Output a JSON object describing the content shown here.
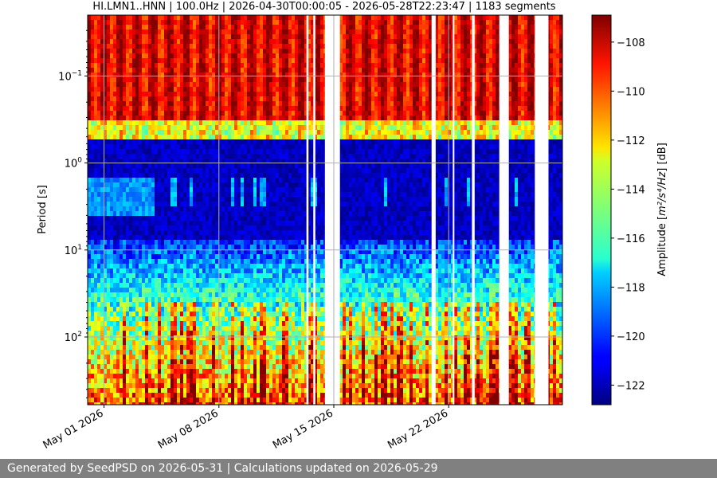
{
  "chart_data": {
    "type": "heatmap",
    "title": "HI.LMN1..HNN | 100.0Hz | 2026-04-30T00:00:05 - 2026-05-28T22:23:47 | 1183 segments",
    "xlabel": "",
    "ylabel": "Period [s]",
    "colorbar_label_prefix": "Amplitude [",
    "colorbar_label_unit": "m²/s⁴/Hz",
    "colorbar_label_suffix": "] [dB]",
    "x_start": "2026-04-30T00:00:05",
    "x_end": "2026-05-28T22:23:47",
    "x_ticks": [
      {
        "date": "2026-05-01",
        "label": "May 01 2026"
      },
      {
        "date": "2026-05-08",
        "label": "May 08 2026"
      },
      {
        "date": "2026-05-15",
        "label": "May 15 2026"
      },
      {
        "date": "2026-05-22",
        "label": "May 22 2026"
      }
    ],
    "y_scale": "log",
    "y_inverted": true,
    "ylim": [
      0.02,
      600
    ],
    "y_ticks": [
      {
        "value": 0.1,
        "base": "10",
        "exp": "−1"
      },
      {
        "value": 1,
        "base": "10",
        "exp": "0"
      },
      {
        "value": 10,
        "base": "10",
        "exp": "1"
      },
      {
        "value": 100,
        "base": "10",
        "exp": "2"
      }
    ],
    "colorbar_range": [
      -122.8,
      -106.9
    ],
    "colorbar_ticks": [
      -108,
      -110,
      -112,
      -114,
      -116,
      -118,
      -120,
      -122
    ],
    "colormap": "jet",
    "grid": true,
    "segments": 1183,
    "data_gaps": [
      [
        "2026-05-13T08:00",
        "2026-05-13T11:00"
      ],
      [
        "2026-05-13T18:00",
        "2026-05-13T21:00"
      ],
      [
        "2026-05-14T11:00",
        "2026-05-15T09:00"
      ],
      [
        "2026-05-20T23:00",
        "2026-05-21T05:00"
      ],
      [
        "2026-05-22T06:00",
        "2026-05-22T08:00"
      ],
      [
        "2026-05-23T10:00",
        "2026-05-23T14:00"
      ],
      [
        "2026-05-25T02:00",
        "2026-05-25T16:00"
      ],
      [
        "2026-05-27T06:00",
        "2026-05-28T02:00"
      ]
    ],
    "band_levels_db": [
      {
        "period_range": [
          0.02,
          0.3
        ],
        "db": -108
      },
      {
        "period_range": [
          0.4,
          0.55
        ],
        "db": -114
      },
      {
        "period_range": [
          0.6,
          6
        ],
        "db": -121.5
      },
      {
        "period_range": [
          10,
          30
        ],
        "db": -119
      },
      {
        "period_range": [
          40,
          600
        ],
        "db": -114
      }
    ]
  },
  "footer": {
    "text": "Generated by SeedPSD on 2026-05-31 | Calculations updated on 2026-05-29"
  }
}
